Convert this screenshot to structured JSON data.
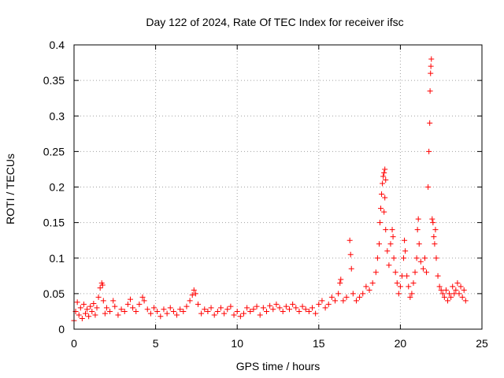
{
  "chart_data": {
    "type": "scatter",
    "title": "Day 122 of 2024, Rate Of TEC Index for receiver ifsc",
    "xlabel": "GPS time / hours",
    "ylabel": "ROTI / TECUs",
    "xlim": [
      0,
      25
    ],
    "ylim": [
      0,
      0.4
    ],
    "x_ticks": [
      0,
      5,
      10,
      15,
      20,
      25
    ],
    "x_tick_labels": [
      "0",
      "5",
      "10",
      "15",
      "20",
      "25"
    ],
    "y_ticks": [
      0,
      0.05,
      0.1,
      0.15,
      0.2,
      0.25,
      0.3,
      0.35,
      0.4
    ],
    "y_tick_labels": [
      "0",
      "0.05",
      "0.1",
      "0.15",
      "0.2",
      "0.25",
      "0.3",
      "0.35",
      "0.4"
    ],
    "grid": true,
    "marker": "+",
    "color": "#ff0000",
    "series": [
      {
        "name": "ROTI",
        "points": [
          [
            0.0,
            0.012
          ],
          [
            0.1,
            0.025
          ],
          [
            0.2,
            0.038
          ],
          [
            0.3,
            0.02
          ],
          [
            0.4,
            0.03
          ],
          [
            0.5,
            0.015
          ],
          [
            0.6,
            0.035
          ],
          [
            0.7,
            0.022
          ],
          [
            0.8,
            0.028
          ],
          [
            0.9,
            0.018
          ],
          [
            1.0,
            0.032
          ],
          [
            1.1,
            0.025
          ],
          [
            1.2,
            0.036
          ],
          [
            1.3,
            0.02
          ],
          [
            1.4,
            0.03
          ],
          [
            1.5,
            0.045
          ],
          [
            1.6,
            0.058
          ],
          [
            1.7,
            0.065
          ],
          [
            1.75,
            0.062
          ],
          [
            1.8,
            0.04
          ],
          [
            1.9,
            0.022
          ],
          [
            2.0,
            0.03
          ],
          [
            2.2,
            0.025
          ],
          [
            2.4,
            0.04
          ],
          [
            2.5,
            0.032
          ],
          [
            2.7,
            0.02
          ],
          [
            2.9,
            0.028
          ],
          [
            3.1,
            0.025
          ],
          [
            3.3,
            0.035
          ],
          [
            3.45,
            0.042
          ],
          [
            3.6,
            0.03
          ],
          [
            3.8,
            0.025
          ],
          [
            4.0,
            0.035
          ],
          [
            4.2,
            0.045
          ],
          [
            4.3,
            0.04
          ],
          [
            4.5,
            0.028
          ],
          [
            4.7,
            0.022
          ],
          [
            4.9,
            0.03
          ],
          [
            5.1,
            0.025
          ],
          [
            5.3,
            0.018
          ],
          [
            5.5,
            0.028
          ],
          [
            5.7,
            0.022
          ],
          [
            5.9,
            0.03
          ],
          [
            6.1,
            0.025
          ],
          [
            6.3,
            0.02
          ],
          [
            6.5,
            0.028
          ],
          [
            6.7,
            0.025
          ],
          [
            6.9,
            0.032
          ],
          [
            7.1,
            0.04
          ],
          [
            7.25,
            0.048
          ],
          [
            7.35,
            0.055
          ],
          [
            7.45,
            0.05
          ],
          [
            7.6,
            0.035
          ],
          [
            7.8,
            0.022
          ],
          [
            8.0,
            0.028
          ],
          [
            8.2,
            0.025
          ],
          [
            8.4,
            0.03
          ],
          [
            8.6,
            0.02
          ],
          [
            8.8,
            0.025
          ],
          [
            9.0,
            0.03
          ],
          [
            9.2,
            0.022
          ],
          [
            9.4,
            0.028
          ],
          [
            9.6,
            0.032
          ],
          [
            9.8,
            0.02
          ],
          [
            10.0,
            0.025
          ],
          [
            10.2,
            0.018
          ],
          [
            10.4,
            0.022
          ],
          [
            10.6,
            0.03
          ],
          [
            10.8,
            0.025
          ],
          [
            11.0,
            0.028
          ],
          [
            11.2,
            0.032
          ],
          [
            11.4,
            0.02
          ],
          [
            11.6,
            0.03
          ],
          [
            11.8,
            0.025
          ],
          [
            12.0,
            0.033
          ],
          [
            12.2,
            0.028
          ],
          [
            12.4,
            0.035
          ],
          [
            12.6,
            0.03
          ],
          [
            12.8,
            0.025
          ],
          [
            13.0,
            0.032
          ],
          [
            13.2,
            0.028
          ],
          [
            13.4,
            0.035
          ],
          [
            13.6,
            0.03
          ],
          [
            13.8,
            0.025
          ],
          [
            14.0,
            0.032
          ],
          [
            14.2,
            0.028
          ],
          [
            14.4,
            0.025
          ],
          [
            14.6,
            0.03
          ],
          [
            14.8,
            0.022
          ],
          [
            15.0,
            0.035
          ],
          [
            15.2,
            0.04
          ],
          [
            15.4,
            0.03
          ],
          [
            15.6,
            0.035
          ],
          [
            15.8,
            0.045
          ],
          [
            16.0,
            0.04
          ],
          [
            16.2,
            0.05
          ],
          [
            16.3,
            0.065
          ],
          [
            16.35,
            0.07
          ],
          [
            16.5,
            0.04
          ],
          [
            16.7,
            0.045
          ],
          [
            16.9,
            0.125
          ],
          [
            16.95,
            0.105
          ],
          [
            17.0,
            0.085
          ],
          [
            17.1,
            0.05
          ],
          [
            17.3,
            0.04
          ],
          [
            17.5,
            0.045
          ],
          [
            17.7,
            0.05
          ],
          [
            17.9,
            0.06
          ],
          [
            18.1,
            0.055
          ],
          [
            18.3,
            0.065
          ],
          [
            18.5,
            0.08
          ],
          [
            18.6,
            0.1
          ],
          [
            18.7,
            0.12
          ],
          [
            18.75,
            0.15
          ],
          [
            18.8,
            0.17
          ],
          [
            18.85,
            0.19
          ],
          [
            18.9,
            0.205
          ],
          [
            18.95,
            0.215
          ],
          [
            19.0,
            0.22
          ],
          [
            19.05,
            0.225
          ],
          [
            19.1,
            0.21
          ],
          [
            19.0,
            0.165
          ],
          [
            19.05,
            0.185
          ],
          [
            19.1,
            0.14
          ],
          [
            19.2,
            0.11
          ],
          [
            19.3,
            0.09
          ],
          [
            19.4,
            0.12
          ],
          [
            19.5,
            0.14
          ],
          [
            19.55,
            0.13
          ],
          [
            19.6,
            0.1
          ],
          [
            19.7,
            0.08
          ],
          [
            19.8,
            0.065
          ],
          [
            19.9,
            0.05
          ],
          [
            20.0,
            0.06
          ],
          [
            20.1,
            0.075
          ],
          [
            20.2,
            0.1
          ],
          [
            20.25,
            0.125
          ],
          [
            20.3,
            0.11
          ],
          [
            20.4,
            0.075
          ],
          [
            20.5,
            0.06
          ],
          [
            20.6,
            0.045
          ],
          [
            20.7,
            0.05
          ],
          [
            20.8,
            0.065
          ],
          [
            20.9,
            0.08
          ],
          [
            21.0,
            0.1
          ],
          [
            21.05,
            0.14
          ],
          [
            21.1,
            0.155
          ],
          [
            21.15,
            0.12
          ],
          [
            21.25,
            0.095
          ],
          [
            21.4,
            0.085
          ],
          [
            21.5,
            0.1
          ],
          [
            21.6,
            0.08
          ],
          [
            21.7,
            0.2
          ],
          [
            21.75,
            0.25
          ],
          [
            21.8,
            0.29
          ],
          [
            21.82,
            0.335
          ],
          [
            21.85,
            0.36
          ],
          [
            21.87,
            0.37
          ],
          [
            21.9,
            0.38
          ],
          [
            21.95,
            0.155
          ],
          [
            22.0,
            0.15
          ],
          [
            22.05,
            0.13
          ],
          [
            22.1,
            0.12
          ],
          [
            22.15,
            0.14
          ],
          [
            22.2,
            0.1
          ],
          [
            22.3,
            0.075
          ],
          [
            22.4,
            0.06
          ],
          [
            22.5,
            0.055
          ],
          [
            22.6,
            0.05
          ],
          [
            22.7,
            0.045
          ],
          [
            22.8,
            0.055
          ],
          [
            22.9,
            0.04
          ],
          [
            23.0,
            0.05
          ],
          [
            23.1,
            0.045
          ],
          [
            23.2,
            0.06
          ],
          [
            23.3,
            0.05
          ],
          [
            23.4,
            0.055
          ],
          [
            23.5,
            0.065
          ],
          [
            23.6,
            0.05
          ],
          [
            23.7,
            0.06
          ],
          [
            23.8,
            0.045
          ],
          [
            23.9,
            0.055
          ],
          [
            24.0,
            0.04
          ]
        ]
      }
    ]
  }
}
